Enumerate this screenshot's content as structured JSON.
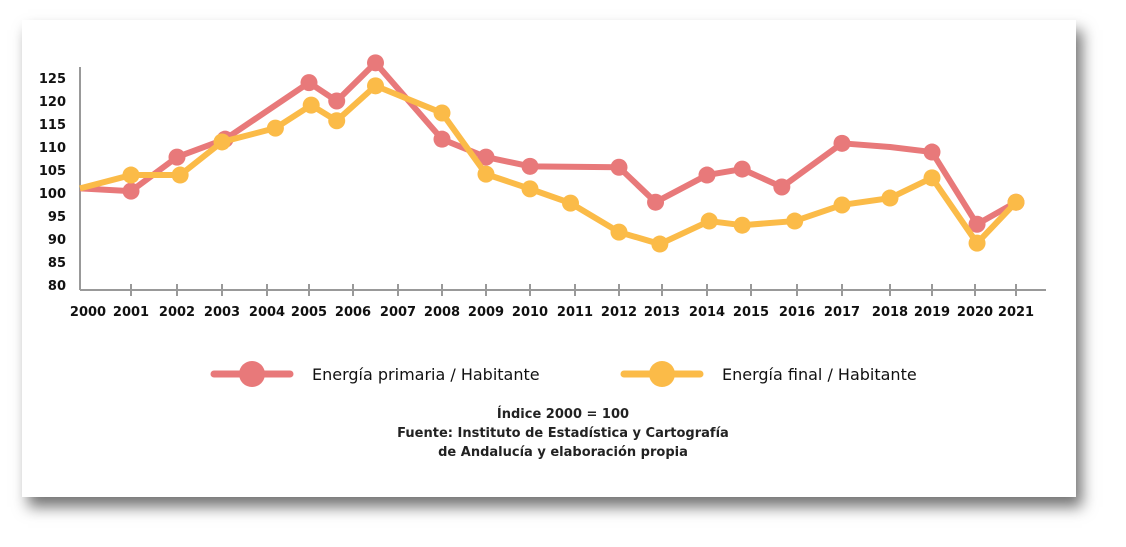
{
  "chart_data": {
    "type": "line",
    "title": "",
    "xlabel": "",
    "ylabel": "",
    "ylim": [
      80,
      125
    ],
    "yticks": [
      80,
      85,
      90,
      95,
      100,
      105,
      110,
      115,
      120,
      125
    ],
    "xticks": [
      "2000",
      "2001",
      "2002",
      "2003",
      "2004",
      "2005",
      "2006",
      "2007",
      "2008",
      "2009",
      "2010",
      "2011",
      "2012",
      "2013",
      "2014",
      "2015",
      "2016",
      "2017",
      "2018",
      "2019",
      "2020",
      "2021"
    ],
    "legend_position": "bottom",
    "series": [
      {
        "name": "Energía primaria / Habitante",
        "color": "#e8797a",
        "points": [
          [
            2000,
            101
          ],
          [
            2001,
            100.4
          ],
          [
            2002,
            107.8
          ],
          [
            2003.07,
            111.7
          ],
          [
            2005,
            124
          ],
          [
            2005.63,
            120
          ],
          [
            2006.5,
            128.3
          ],
          [
            2008,
            111.7
          ],
          [
            2009,
            107.8
          ],
          [
            2010,
            105.8
          ],
          [
            2012,
            105.6
          ],
          [
            2012.85,
            98
          ],
          [
            2014,
            103.9
          ],
          [
            2014.8,
            105.2
          ],
          [
            2015.67,
            101.3
          ],
          [
            2017,
            110.8
          ],
          [
            2018,
            110
          ],
          [
            2019,
            108.9
          ],
          [
            2020.05,
            93.2
          ],
          [
            2021,
            98
          ]
        ],
        "unmarked": [
          0,
          16
        ]
      },
      {
        "name": "Energía final / Habitante",
        "color": "#fbbb48",
        "points": [
          [
            2000,
            101
          ],
          [
            2001,
            103.9
          ],
          [
            2002.07,
            103.9
          ],
          [
            2003,
            111.1
          ],
          [
            2004.2,
            114.1
          ],
          [
            2005.05,
            119.1
          ],
          [
            2005.63,
            115.7
          ],
          [
            2006.5,
            123.3
          ],
          [
            2008,
            117.4
          ],
          [
            2009,
            104.1
          ],
          [
            2010,
            100.9
          ],
          [
            2010.9,
            97.8
          ],
          [
            2012,
            91.5
          ],
          [
            2012.95,
            88.9
          ],
          [
            2014.05,
            93.9
          ],
          [
            2014.8,
            93
          ],
          [
            2015.95,
            93.9
          ],
          [
            2017,
            97.4
          ],
          [
            2018,
            98.9
          ],
          [
            2019,
            103.3
          ],
          [
            2020.05,
            89.1
          ],
          [
            2021,
            98
          ]
        ],
        "unmarked": [
          0
        ]
      }
    ]
  },
  "notes": {
    "line1": "Índice 2000 = 100",
    "line2": "Fuente: Instituto de Estadística y Cartografía",
    "line3": "de Andalucía y elaboración propia"
  }
}
